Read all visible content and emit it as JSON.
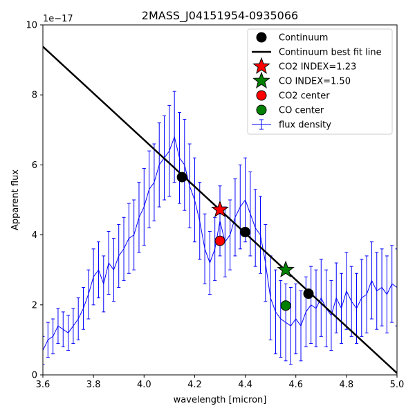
{
  "chart_data": {
    "type": "scatter",
    "title": "2MASS_J04151954-0935066",
    "xlabel": "wavelength [micron]",
    "ylabel": "Apparent flux",
    "y_offset_label": "1e−17",
    "xlim": [
      3.6,
      5.0
    ],
    "ylim": [
      0,
      10
    ],
    "x_ticks": [
      3.6,
      3.8,
      4.0,
      4.2,
      4.4,
      4.6,
      4.8,
      5.0
    ],
    "x_tick_labels": [
      "3.6",
      "3.8",
      "4.0",
      "4.2",
      "4.4",
      "4.6",
      "4.8",
      "5.0"
    ],
    "y_ticks": [
      0,
      2,
      4,
      6,
      8,
      10
    ],
    "y_tick_labels": [
      "0",
      "2",
      "4",
      "6",
      "8",
      "10"
    ],
    "grid": false,
    "legend_position": "top-right",
    "legend": [
      {
        "label": "Continuum",
        "marker": "circle",
        "color": "#000000"
      },
      {
        "label": "Continuum best fit line",
        "marker": "line",
        "color": "#000000"
      },
      {
        "label": "CO2 INDEX=1.23",
        "marker": "star",
        "color": "#ff0000"
      },
      {
        "label": "CO  INDEX=1.50",
        "marker": "star",
        "color": "#008000"
      },
      {
        "label": "CO2 center",
        "marker": "circle",
        "color": "#ff0000"
      },
      {
        "label": "CO  center",
        "marker": "circle",
        "color": "#008000"
      },
      {
        "label": "flux density",
        "marker": "errorbar",
        "color": "#0000ff"
      }
    ],
    "flux_density_series": {
      "name": "flux density",
      "color": "#0000ff",
      "x": [
        3.6,
        3.62,
        3.64,
        3.66,
        3.68,
        3.7,
        3.72,
        3.74,
        3.76,
        3.78,
        3.8,
        3.82,
        3.84,
        3.86,
        3.88,
        3.9,
        3.92,
        3.94,
        3.96,
        3.98,
        4.0,
        4.02,
        4.04,
        4.06,
        4.08,
        4.1,
        4.12,
        4.14,
        4.16,
        4.18,
        4.2,
        4.22,
        4.24,
        4.26,
        4.28,
        4.3,
        4.32,
        4.34,
        4.36,
        4.38,
        4.4,
        4.42,
        4.44,
        4.46,
        4.48,
        4.5,
        4.52,
        4.54,
        4.56,
        4.58,
        4.6,
        4.62,
        4.64,
        4.66,
        4.68,
        4.7,
        4.72,
        4.74,
        4.76,
        4.78,
        4.8,
        4.82,
        4.84,
        4.86,
        4.88,
        4.9,
        4.92,
        4.94,
        4.96,
        4.98,
        5.0
      ],
      "y": [
        0.7,
        1.0,
        1.1,
        1.4,
        1.3,
        1.2,
        1.4,
        1.6,
        1.9,
        2.3,
        2.8,
        3.0,
        2.6,
        3.2,
        3.0,
        3.4,
        3.6,
        3.9,
        4.0,
        4.5,
        4.8,
        5.3,
        5.5,
        6.0,
        6.2,
        6.4,
        6.8,
        6.2,
        6.0,
        5.4,
        5.0,
        4.4,
        3.6,
        3.2,
        3.6,
        4.4,
        3.8,
        4.0,
        4.5,
        4.8,
        5.0,
        4.6,
        4.2,
        4.0,
        3.2,
        2.2,
        1.8,
        1.6,
        1.5,
        1.4,
        1.6,
        1.4,
        1.8,
        2.0,
        1.9,
        2.2,
        1.9,
        1.7,
        2.2,
        1.9,
        2.4,
        2.1,
        1.9,
        2.2,
        2.3,
        2.7,
        2.4,
        2.5,
        2.3,
        2.6,
        2.5
      ],
      "yerr": [
        0.4,
        0.5,
        0.5,
        0.5,
        0.5,
        0.5,
        0.5,
        0.6,
        0.6,
        0.7,
        0.8,
        0.8,
        0.8,
        0.9,
        0.9,
        0.9,
        0.9,
        1.0,
        1.0,
        1.0,
        1.1,
        1.1,
        1.1,
        1.2,
        1.2,
        1.3,
        1.3,
        1.3,
        1.3,
        1.2,
        1.2,
        1.1,
        1.0,
        0.9,
        0.9,
        1.0,
        1.0,
        1.0,
        1.1,
        1.2,
        1.2,
        1.2,
        1.1,
        1.1,
        1.1,
        1.2,
        1.2,
        1.1,
        1.1,
        1.1,
        1.0,
        1.0,
        1.0,
        1.1,
        1.1,
        1.1,
        1.1,
        1.0,
        1.0,
        1.0,
        1.1,
        1.0,
        1.0,
        1.1,
        1.1,
        1.1,
        1.1,
        1.1,
        1.1,
        1.1,
        1.1
      ]
    },
    "continuum_points": {
      "x": [
        4.15,
        4.4,
        4.65
      ],
      "y": [
        5.65,
        4.08,
        2.32
      ]
    },
    "continuum_fit_line": {
      "x": [
        3.6,
        5.0
      ],
      "y": [
        9.38,
        0.05
      ]
    },
    "co2_index_star": {
      "x": 4.3,
      "y": 4.72
    },
    "co_index_star": {
      "x": 4.56,
      "y": 3.0
    },
    "co2_center": {
      "x": 4.3,
      "y": 3.83
    },
    "co_center": {
      "x": 4.56,
      "y": 1.98
    }
  }
}
